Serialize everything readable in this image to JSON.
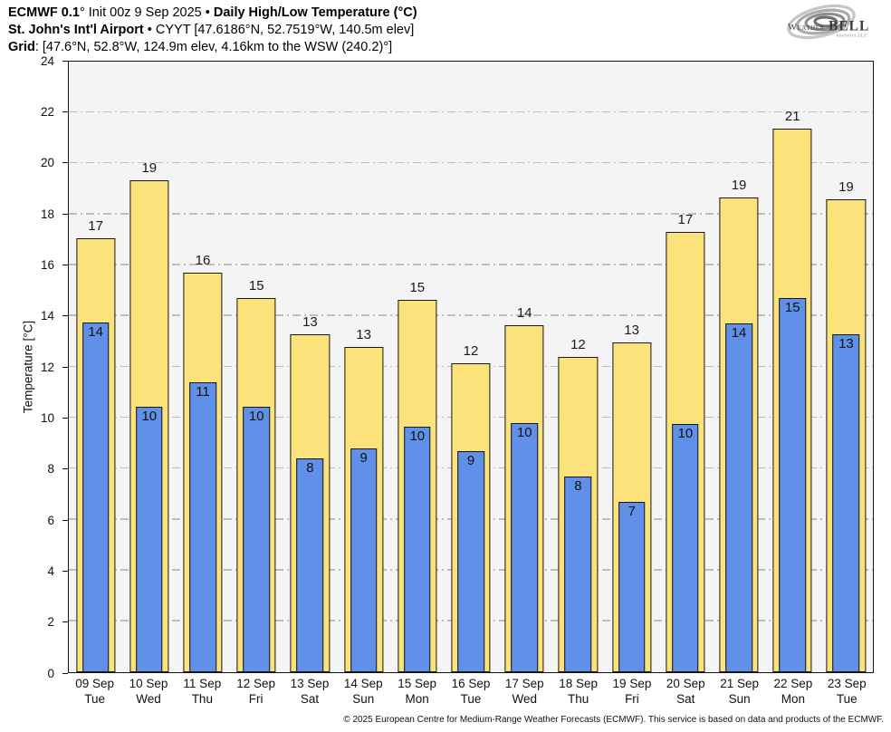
{
  "header": {
    "line1": [
      {
        "text": "ECMWF 0.1",
        "bold": true
      },
      {
        "text": "° Init 00z 9 Sep 2025 • ",
        "bold": false
      },
      {
        "text": "Daily High/Low Temperature (°C)",
        "bold": true
      }
    ],
    "line2": [
      {
        "text": "St. John's Int'l Airport",
        "bold": true
      },
      {
        "text": " • CYYT [47.6186°N, 52.7519°W, 140.5m elev]",
        "bold": false
      }
    ],
    "line3": [
      {
        "text": "Grid",
        "bold": true
      },
      {
        "text": ": [47.6°N, 52.8°W, 124.9m elev, 4.16km to the WSW (240.2)°]",
        "bold": false
      }
    ]
  },
  "logo": {
    "word1": "Weather",
    "word2": "BELL",
    "sub": "Analytics LLC"
  },
  "footer": {
    "copyright": "© 2025 European Centre for Medium-Range Weather Forecasts (ECMWF). This service is based on data and products of the ECMWF."
  },
  "colors": {
    "plot_bg": "#f4f4f4",
    "gridline": "#bdbdbd",
    "axis": "#141414",
    "high_bar": "#fbe27a",
    "low_bar": "#6090e8"
  },
  "chart_data": {
    "type": "bar",
    "title": "ECMWF 0.1° Init 00z 9 Sep 2025 • Daily High/Low Temperature (°C)",
    "subtitle": "St. John's Int'l Airport • CYYT [47.6186°N, 52.7519°W, 140.5m elev]",
    "grid_note": "Grid: [47.6°N, 52.8°W, 124.9m elev, 4.16km to the WSW (240.2)°]",
    "ylabel": "Temperature [°C]",
    "ylim": [
      0,
      24
    ],
    "ytick_step": 2,
    "grid_on": true,
    "legend": "none",
    "categories": [
      "09 Sep",
      "10 Sep",
      "11 Sep",
      "12 Sep",
      "13 Sep",
      "14 Sep",
      "15 Sep",
      "16 Sep",
      "17 Sep",
      "18 Sep",
      "19 Sep",
      "20 Sep",
      "21 Sep",
      "22 Sep",
      "23 Sep"
    ],
    "weekdays": [
      "Tue",
      "Wed",
      "Thu",
      "Fri",
      "Sat",
      "Sun",
      "Mon",
      "Tue",
      "Wed",
      "Thu",
      "Fri",
      "Sat",
      "Sun",
      "Mon",
      "Tue"
    ],
    "series": [
      {
        "name": "Daily High",
        "color": "#fbe27a",
        "labels": [
          17,
          19,
          16,
          15,
          13,
          13,
          15,
          12,
          14,
          12,
          13,
          17,
          19,
          21,
          19
        ],
        "values": [
          17.05,
          19.35,
          15.7,
          14.7,
          13.3,
          12.8,
          14.65,
          12.15,
          13.65,
          12.4,
          12.95,
          17.3,
          18.65,
          21.35,
          18.6
        ]
      },
      {
        "name": "Daily Low",
        "color": "#6090e8",
        "labels": [
          14,
          10,
          11,
          10,
          8,
          9,
          10,
          9,
          10,
          8,
          7,
          10,
          14,
          15,
          13
        ],
        "values": [
          13.75,
          10.45,
          11.4,
          10.45,
          8.4,
          8.8,
          9.65,
          8.7,
          9.8,
          7.7,
          6.7,
          9.75,
          13.7,
          14.7,
          13.3
        ]
      }
    ]
  }
}
